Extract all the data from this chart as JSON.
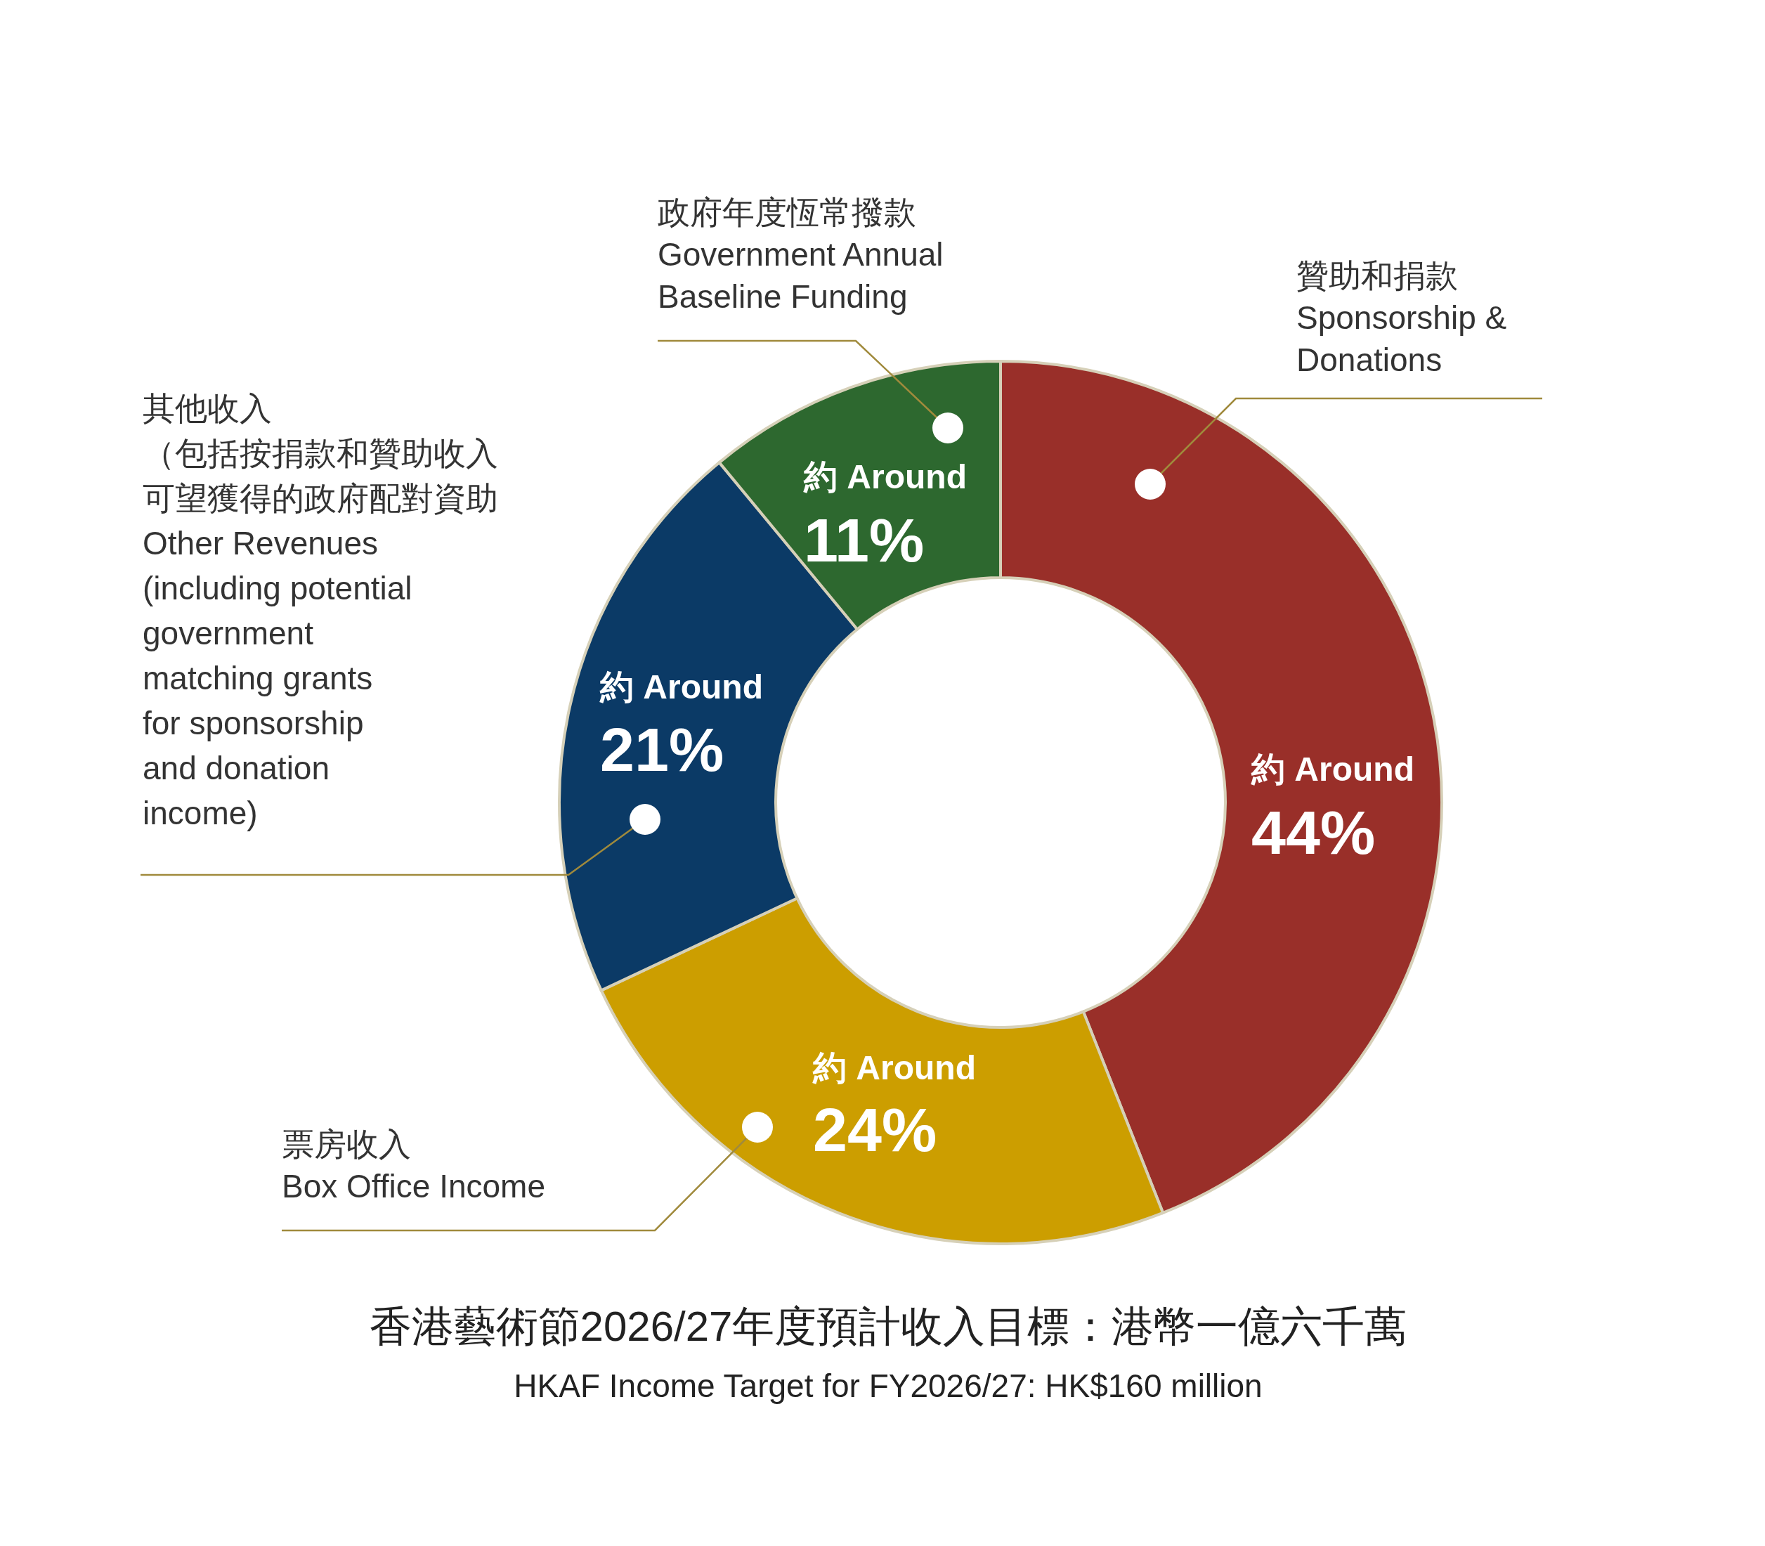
{
  "chart_data": {
    "type": "donut",
    "title": "香港藝術節2026/27年度預計收入目標：港幣一億六千萬",
    "subtitle": "HKAF Income Target for FY2026/27: HK$160 million",
    "categories": [
      "贊助和捐款\nSponsorship & Donations",
      "票房收入\nBox Office Income",
      "其他收入（包括按捐款和贊助收入可望獲得的政府配對資助\nOther Revenues (including potential government matching grants for sponsorship and donation income)",
      "政府年度恆常撥款\nGovernment Annual Baseline Funding"
    ],
    "values": [
      44,
      24,
      21,
      11
    ],
    "colors": [
      "#992f29",
      "#cc9e00",
      "#0b3a66",
      "#2d682f"
    ],
    "value_labels": [
      "約 Around\n44%",
      "約 Around\n24%",
      "約 Around\n21%",
      "約 Around\n11%"
    ]
  }
}
